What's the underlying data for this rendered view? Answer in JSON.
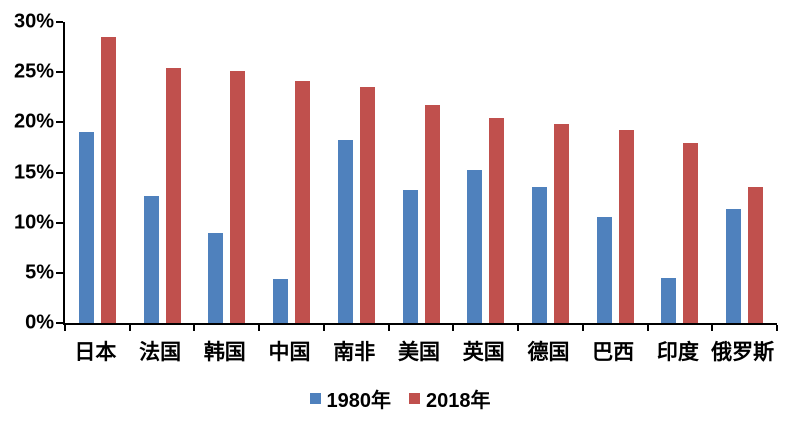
{
  "chart_data": {
    "type": "bar",
    "title": "",
    "categories": [
      "日本",
      "法国",
      "韩国",
      "中国",
      "南非",
      "美国",
      "英国",
      "德国",
      "巴西",
      "印度",
      "俄罗斯"
    ],
    "series": [
      {
        "name": "1980年",
        "color": "#4f81bd",
        "values": [
          19.0,
          12.7,
          9.0,
          4.4,
          18.2,
          13.3,
          15.3,
          13.6,
          10.6,
          4.5,
          11.4
        ]
      },
      {
        "name": "2018年",
        "color": "#c0504d",
        "values": [
          28.5,
          25.4,
          25.1,
          24.1,
          23.5,
          21.7,
          20.4,
          19.8,
          19.2,
          17.9,
          13.6
        ]
      }
    ],
    "ylim": [
      0,
      30
    ],
    "ytick_step": 5,
    "ytick_labels": [
      "0%",
      "5%",
      "10%",
      "15%",
      "20%",
      "25%",
      "30%"
    ],
    "grid": false,
    "legend_position": "bottom-center"
  },
  "colors": {
    "axis": "#000000",
    "text": "#000000",
    "background": "#ffffff",
    "series_1980": "#4f81bd",
    "series_2018": "#c0504d"
  }
}
